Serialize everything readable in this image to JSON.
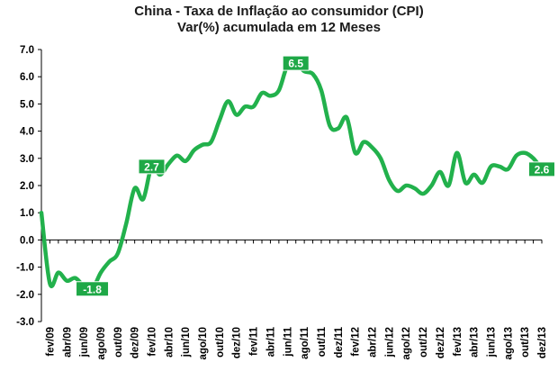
{
  "chart_data": {
    "type": "line",
    "title": "China - Taxa de Inflação ao consumidor (CPI)",
    "subtitle": "Var(%) acumulada em 12 Meses",
    "xlabel": "",
    "ylabel": "",
    "ylim": [
      -3.0,
      7.0
    ],
    "y_ticks": [
      "-3.0",
      "-2.0",
      "-1.0",
      "0.0",
      "1.0",
      "2.0",
      "3.0",
      "4.0",
      "5.0",
      "6.0",
      "7.0"
    ],
    "grid": false,
    "line_color": "#22b14c",
    "label_bg_color": "#1fa847",
    "x_tick_labels": [
      "fev/09",
      "abr/09",
      "jun/09",
      "ago/09",
      "out/09",
      "dez/09",
      "fev/10",
      "abr/10",
      "jun/10",
      "ago/10",
      "out/10",
      "dez/10",
      "fev/11",
      "abr/11",
      "jun/11",
      "ago/11",
      "out/11",
      "dez/11",
      "fev/12",
      "abr/12",
      "jun/12",
      "ago/12",
      "out/12",
      "dez/12",
      "fev/13",
      "abr/13",
      "jun/13",
      "ago/13",
      "out/13",
      "dez/13"
    ],
    "series": [
      {
        "x": [
          "jan/09",
          "fev/09",
          "mar/09",
          "abr/09",
          "mai/09",
          "jun/09",
          "jul/09",
          "ago/09",
          "set/09",
          "out/09",
          "nov/09",
          "dez/09",
          "jan/10",
          "fev/10",
          "mar/10",
          "abr/10",
          "mai/10",
          "jun/10",
          "jul/10",
          "ago/10",
          "set/10",
          "out/10",
          "nov/10",
          "dez/10",
          "jan/11",
          "fev/11",
          "mar/11",
          "abr/11",
          "mai/11",
          "jun/11",
          "jul/11",
          "ago/11",
          "set/11",
          "out/11",
          "nov/11",
          "dez/11",
          "jan/12",
          "fev/12",
          "mar/12",
          "abr/12",
          "mai/12",
          "jun/12",
          "jul/12",
          "ago/12",
          "set/12",
          "out/12",
          "nov/12",
          "dez/12",
          "jan/13",
          "fev/13",
          "mar/13",
          "abr/13",
          "mai/13",
          "jun/13",
          "jul/13",
          "ago/13",
          "set/13",
          "out/13",
          "nov/13",
          "dez/13"
        ],
        "values": [
          1.0,
          -1.6,
          -1.2,
          -1.5,
          -1.4,
          -1.7,
          -1.8,
          -1.2,
          -0.8,
          -0.5,
          0.6,
          1.9,
          1.5,
          2.7,
          2.4,
          2.8,
          3.1,
          2.9,
          3.3,
          3.5,
          3.6,
          4.4,
          5.1,
          4.6,
          4.9,
          4.9,
          5.4,
          5.3,
          5.5,
          6.4,
          6.5,
          6.2,
          6.1,
          5.5,
          4.2,
          4.1,
          4.5,
          3.2,
          3.6,
          3.4,
          3.0,
          2.2,
          1.8,
          2.0,
          1.9,
          1.7,
          2.0,
          2.5,
          2.0,
          3.2,
          2.1,
          2.4,
          2.1,
          2.7,
          2.7,
          2.6,
          3.1,
          3.2,
          3.0,
          2.6
        ]
      }
    ],
    "data_labels": [
      {
        "x": "jul/09",
        "text": "-1.8"
      },
      {
        "x": "fev/10",
        "text": "2.7"
      },
      {
        "x": "jul/11",
        "text": "6.5"
      },
      {
        "x": "dez/13",
        "text": "2.6"
      }
    ]
  }
}
